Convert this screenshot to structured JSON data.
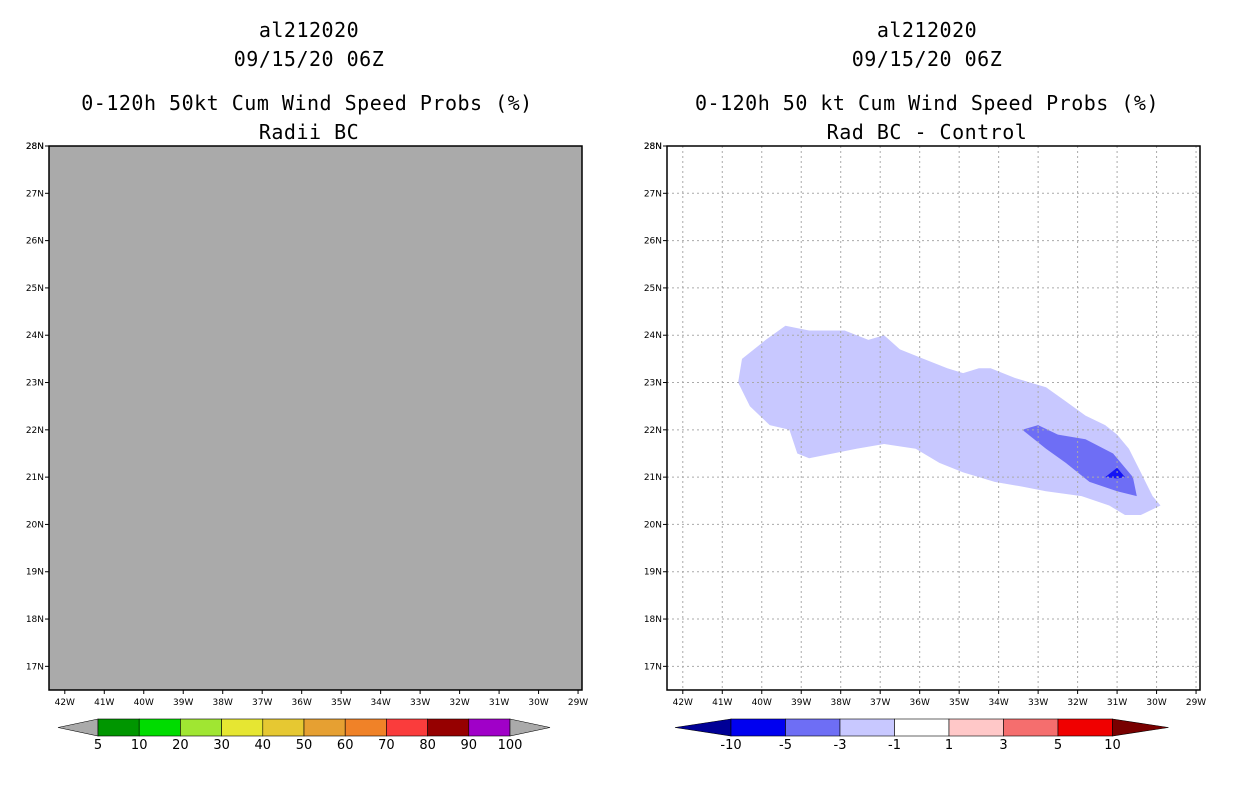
{
  "panels": [
    {
      "id": "left",
      "storm": "al212020",
      "datetime": "09/15/20 06Z",
      "title": "0-120h 50kt Cum Wind Speed Probs (%)",
      "subtitle": "Radii BC"
    },
    {
      "id": "right",
      "storm": "al212020",
      "datetime": "09/15/20 06Z",
      "title": "0-120h 50 kt Cum Wind Speed Probs (%)",
      "subtitle": "Rad BC - Control"
    }
  ],
  "chart_data": [
    {
      "type": "heatmap",
      "title": "0-120h 50kt Cum Wind Speed Probs (%)",
      "subtitle": "Radii BC",
      "x_ticks": [
        "42W",
        "41W",
        "40W",
        "39W",
        "38W",
        "37W",
        "36W",
        "35W",
        "34W",
        "33W",
        "32W",
        "31W",
        "30W",
        "29W"
      ],
      "y_ticks": [
        "17N",
        "18N",
        "19N",
        "20N",
        "21N",
        "22N",
        "23N",
        "24N",
        "25N",
        "26N",
        "27N",
        "28N"
      ],
      "xlim": [
        -42.4,
        -28.9
      ],
      "ylim": [
        16.5,
        28
      ],
      "grid": false,
      "field_color": "#aaaaaa",
      "colorbar": {
        "labels": [
          "5",
          "10",
          "20",
          "30",
          "40",
          "50",
          "60",
          "70",
          "80",
          "90",
          "100"
        ],
        "colors": [
          "#aaaaaa",
          "#009600",
          "#00dc00",
          "#a0e632",
          "#e6e632",
          "#e6c832",
          "#e6a032",
          "#f08228",
          "#fa3c3c",
          "#960000",
          "#a000c8",
          "#aaaaaa"
        ]
      }
    },
    {
      "type": "heatmap",
      "title": "0-120h 50 kt Cum Wind Speed Probs (%)",
      "subtitle": "Rad BC - Control",
      "x_ticks": [
        "42W",
        "41W",
        "40W",
        "39W",
        "38W",
        "37W",
        "36W",
        "35W",
        "34W",
        "33W",
        "32W",
        "31W",
        "30W",
        "29W"
      ],
      "y_ticks": [
        "17N",
        "18N",
        "19N",
        "20N",
        "21N",
        "22N",
        "23N",
        "24N",
        "25N",
        "26N",
        "27N",
        "28N"
      ],
      "xlim": [
        -42.4,
        -28.9
      ],
      "ylim": [
        16.5,
        28
      ],
      "grid": true,
      "contours": [
        {
          "level": "-3 to -1",
          "color": "#c8c8ff",
          "points": [
            [
              -40.6,
              23.0
            ],
            [
              -40.5,
              23.5
            ],
            [
              -39.9,
              23.9
            ],
            [
              -39.4,
              24.2
            ],
            [
              -38.8,
              24.1
            ],
            [
              -38.3,
              24.1
            ],
            [
              -37.9,
              24.1
            ],
            [
              -37.3,
              23.9
            ],
            [
              -36.9,
              24.0
            ],
            [
              -36.5,
              23.7
            ],
            [
              -35.9,
              23.5
            ],
            [
              -35.3,
              23.3
            ],
            [
              -34.9,
              23.2
            ],
            [
              -34.5,
              23.3
            ],
            [
              -34.2,
              23.3
            ],
            [
              -33.6,
              23.1
            ],
            [
              -32.8,
              22.9
            ],
            [
              -32.3,
              22.6
            ],
            [
              -31.8,
              22.3
            ],
            [
              -31.3,
              22.1
            ],
            [
              -31.0,
              21.9
            ],
            [
              -30.7,
              21.6
            ],
            [
              -30.4,
              21.1
            ],
            [
              -30.1,
              20.6
            ],
            [
              -29.9,
              20.4
            ],
            [
              -30.4,
              20.2
            ],
            [
              -30.8,
              20.2
            ],
            [
              -31.2,
              20.4
            ],
            [
              -31.9,
              20.6
            ],
            [
              -32.8,
              20.7
            ],
            [
              -33.4,
              20.8
            ],
            [
              -34.1,
              20.9
            ],
            [
              -34.9,
              21.1
            ],
            [
              -35.5,
              21.3
            ],
            [
              -36.1,
              21.6
            ],
            [
              -36.9,
              21.7
            ],
            [
              -37.6,
              21.6
            ],
            [
              -38.2,
              21.5
            ],
            [
              -38.8,
              21.4
            ],
            [
              -39.1,
              21.5
            ],
            [
              -39.3,
              22.0
            ],
            [
              -39.8,
              22.1
            ],
            [
              -40.3,
              22.5
            ]
          ]
        },
        {
          "level": "-5 to -3",
          "color": "#6e6ef5",
          "points": [
            [
              -33.4,
              22.0
            ],
            [
              -33.0,
              22.1
            ],
            [
              -32.5,
              21.9
            ],
            [
              -31.8,
              21.8
            ],
            [
              -31.1,
              21.5
            ],
            [
              -30.6,
              21.0
            ],
            [
              -30.5,
              20.6
            ],
            [
              -31.0,
              20.7
            ],
            [
              -31.7,
              20.9
            ],
            [
              -32.3,
              21.3
            ],
            [
              -32.8,
              21.6
            ]
          ]
        },
        {
          "level": "-10 to -5",
          "color": "#1414f5",
          "points": [
            [
              -31.0,
              21.2
            ],
            [
              -30.8,
              21.0
            ],
            [
              -31.0,
              20.97
            ],
            [
              -31.3,
              21.0
            ]
          ]
        }
      ],
      "colorbar": {
        "labels": [
          "-10",
          "-5",
          "-3",
          "-1",
          "1",
          "3",
          "5",
          "10"
        ],
        "colors": [
          "#000096",
          "#0000f0",
          "#6e6ef5",
          "#c8c8ff",
          "#ffffff",
          "#ffc8c8",
          "#f56e6e",
          "#f00000",
          "#780000"
        ]
      }
    }
  ]
}
